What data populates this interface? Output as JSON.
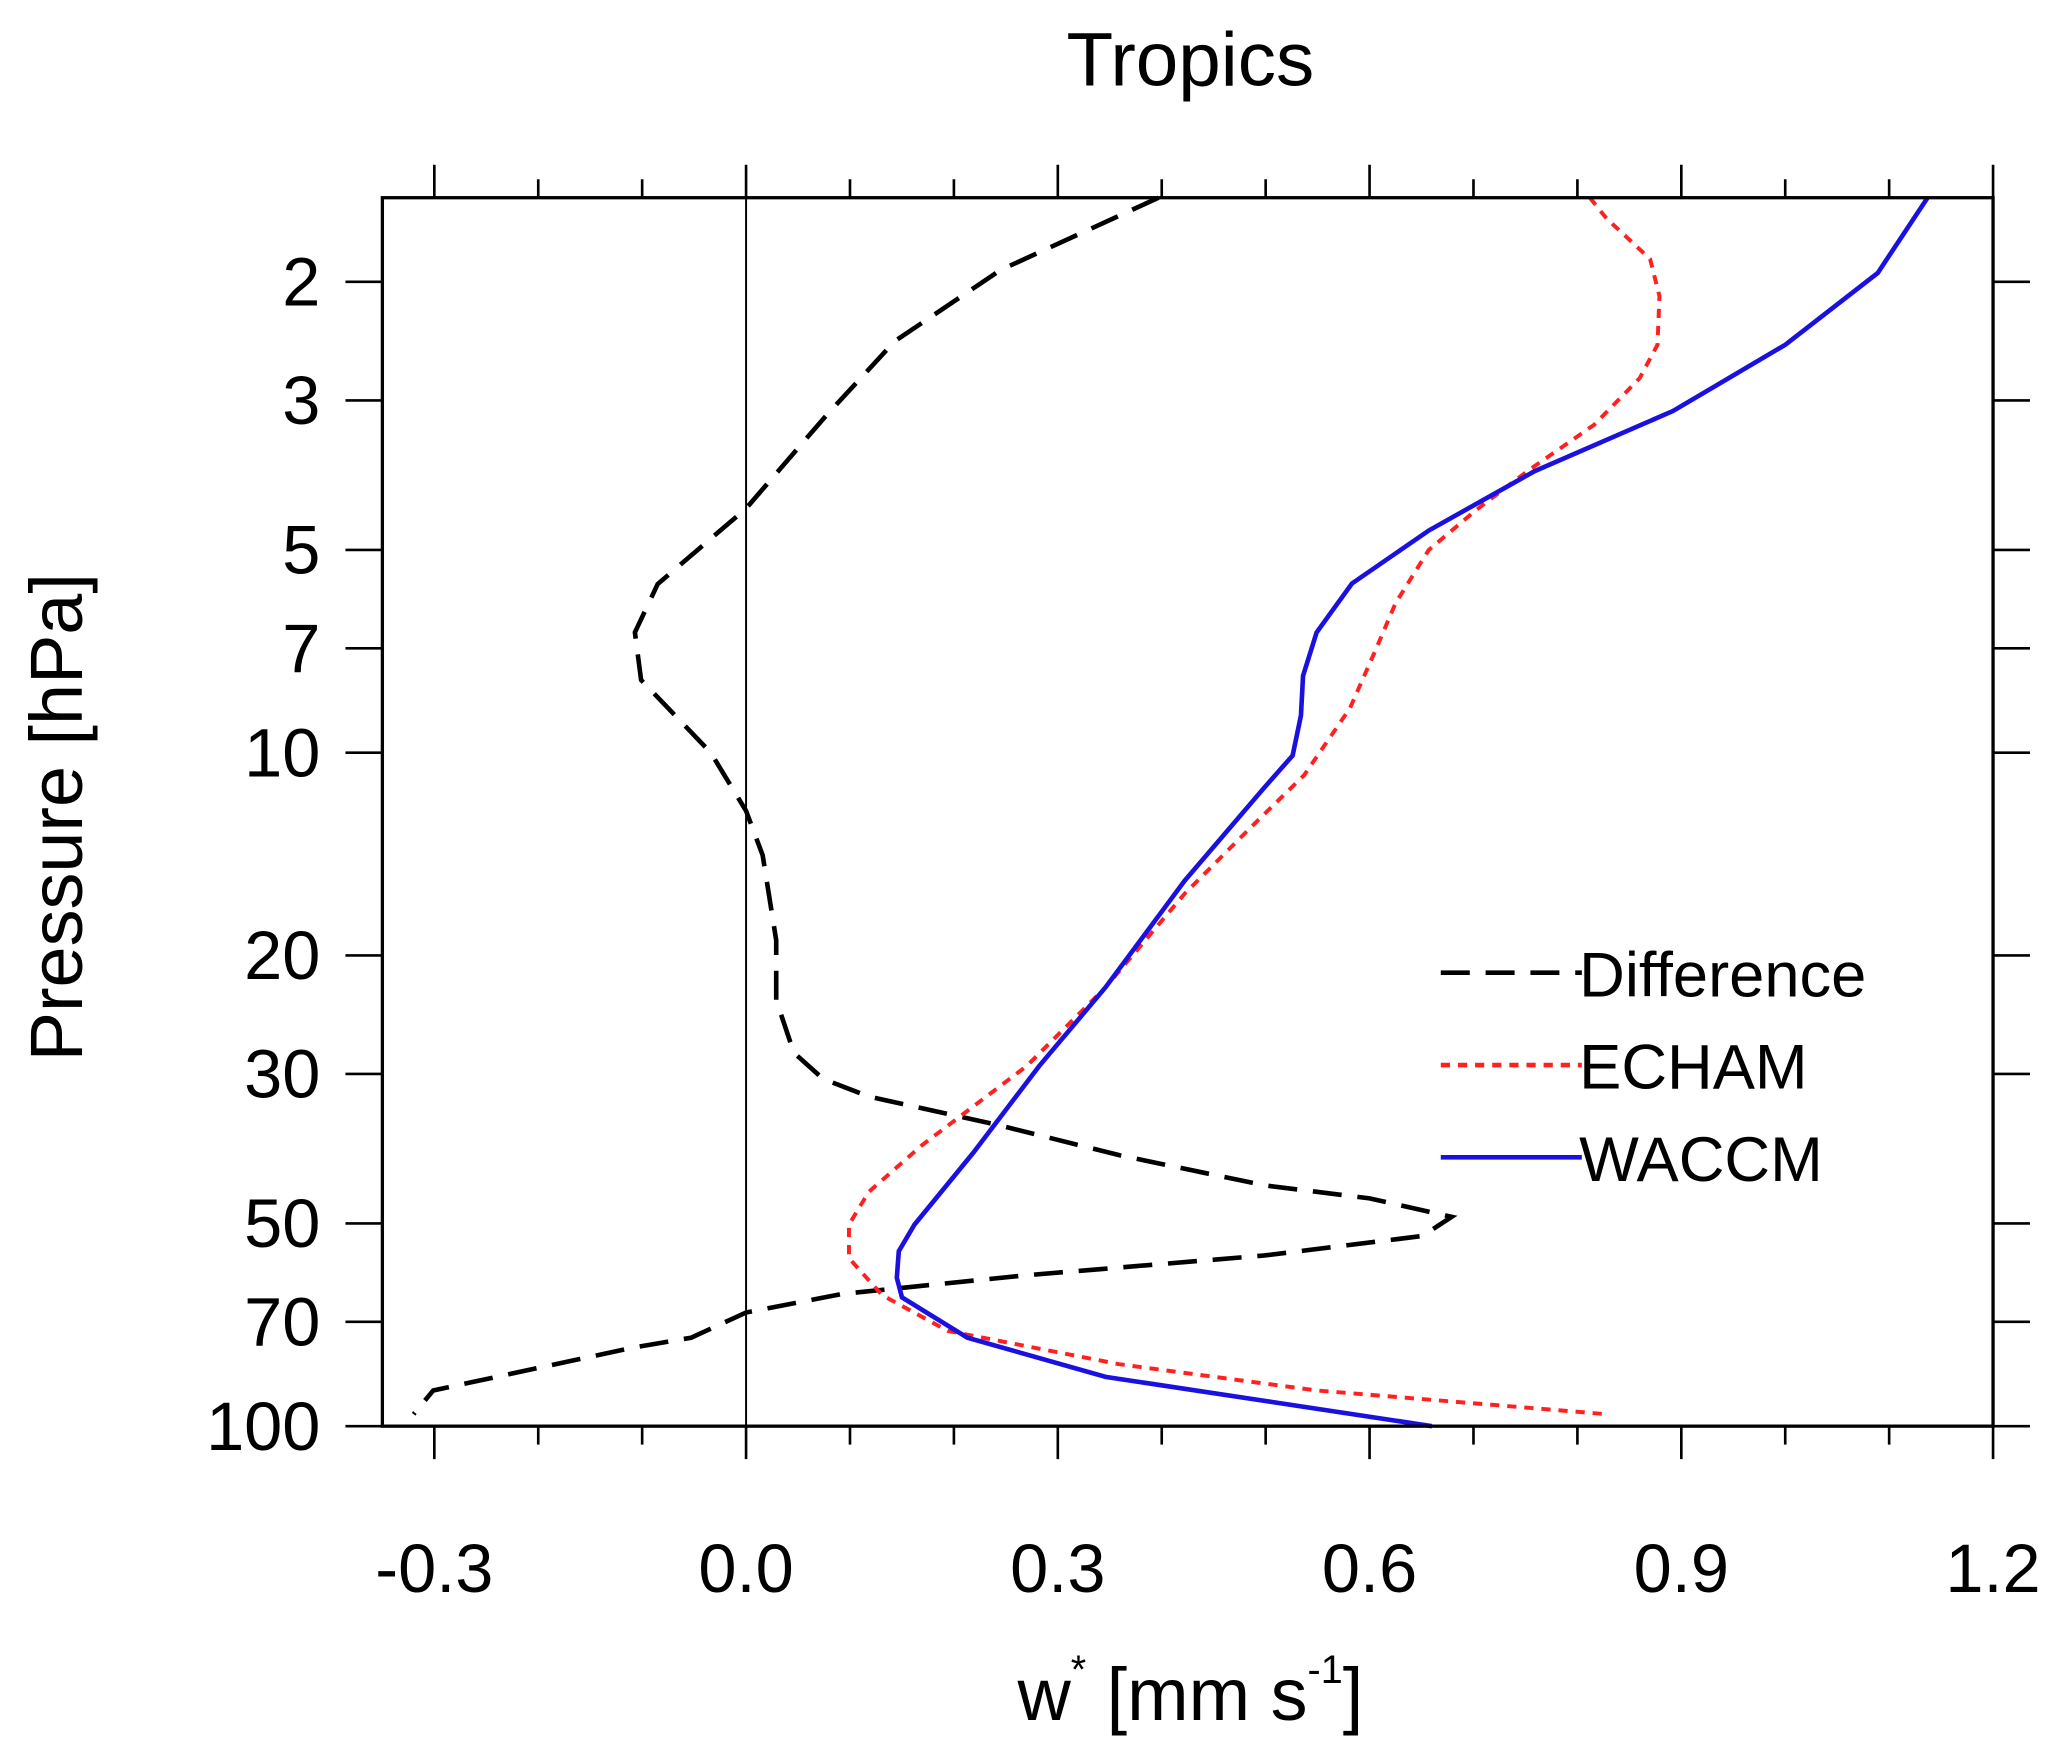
{
  "chart_data": {
    "type": "line",
    "title": "Tropics",
    "xlabel": "w",
    "xlabel_sup": "*",
    "xlabel_units": " [mm s",
    "xlabel_units_sup": "-1",
    "xlabel_close": "]",
    "ylabel": "Pressure [hPa]",
    "xlim": [
      -0.35,
      1.2
    ],
    "ylim": [
      1.5,
      100
    ],
    "yscale": "log",
    "y_inverted": true,
    "x_ticks": [
      -0.3,
      0.0,
      0.3,
      0.6,
      0.9,
      1.2
    ],
    "x_tick_labels": [
      "-0.3",
      "0.0",
      "0.3",
      "0.6",
      "0.9",
      "1.2"
    ],
    "y_ticks": [
      2,
      3,
      5,
      7,
      10,
      20,
      30,
      50,
      70,
      100
    ],
    "y_tick_labels": [
      "2",
      "3",
      "5",
      "7",
      "10",
      "20",
      "30",
      "50",
      "70",
      "100"
    ],
    "grid": false,
    "zero_line": 0,
    "legend_position": "lower-right",
    "series": [
      {
        "name": "Difference",
        "color": "#000000",
        "style": "dashed",
        "x": [
          0.397,
          0.245,
          0.143,
          0.077,
          0.029,
          0.0,
          -0.085,
          -0.107,
          -0.101,
          -0.034,
          0.0,
          0.016,
          0.029,
          0.029,
          0.046,
          0.074,
          0.118,
          0.245,
          0.359,
          0.499,
          0.6,
          0.679,
          0.651,
          0.499,
          0.27,
          0.093,
          0.0,
          -0.053,
          -0.11,
          -0.301,
          -0.32
        ],
        "y": [
          1.5,
          1.92,
          2.45,
          3.16,
          3.85,
          4.34,
          5.62,
          6.63,
          7.8,
          10,
          12.2,
          14.2,
          19,
          23.3,
          27.9,
          30.5,
          32.4,
          35.8,
          39.6,
          43.9,
          45.9,
          48.9,
          52.2,
          55.8,
          59.7,
          63.6,
          67.8,
          73.9,
          76.5,
          88.5,
          96
        ]
      },
      {
        "name": "ECHAM",
        "color": "#ff2020",
        "style": "dotted",
        "x": [
          0.812,
          0.828,
          0.87,
          0.879,
          0.877,
          0.86,
          0.816,
          0.752,
          0.702,
          0.657,
          0.625,
          0.606,
          0.581,
          0.537,
          0.486,
          0.422,
          0.346,
          0.27,
          0.169,
          0.118,
          0.099,
          0.099,
          0.131,
          0.194,
          0.359,
          0.549,
          0.828
        ],
        "y": [
          1.5,
          1.61,
          1.85,
          2.1,
          2.48,
          2.78,
          3.26,
          3.82,
          4.37,
          5.0,
          6.0,
          7.03,
          8.6,
          10.8,
          12.9,
          16.2,
          22.3,
          29.2,
          38.3,
          44.9,
          50.2,
          56.3,
          63.9,
          72.2,
          80.9,
          88.5,
          96
        ]
      },
      {
        "name": "WACCM",
        "color": "#1a10e0",
        "style": "solid",
        "x": [
          1.137,
          1.089,
          1.0,
          0.892,
          0.759,
          0.657,
          0.583,
          0.549,
          0.536,
          0.534,
          0.526,
          0.498,
          0.422,
          0.346,
          0.282,
          0.219,
          0.162,
          0.147,
          0.145,
          0.15,
          0.213,
          0.346,
          0.66
        ],
        "y": [
          1.5,
          1.94,
          2.48,
          3.11,
          3.82,
          4.68,
          5.61,
          6.63,
          7.69,
          8.81,
          10.1,
          11.3,
          15.5,
          22.3,
          29.2,
          39.2,
          50.2,
          55,
          60.2,
          64.4,
          73.9,
          84.5,
          100
        ]
      }
    ]
  }
}
